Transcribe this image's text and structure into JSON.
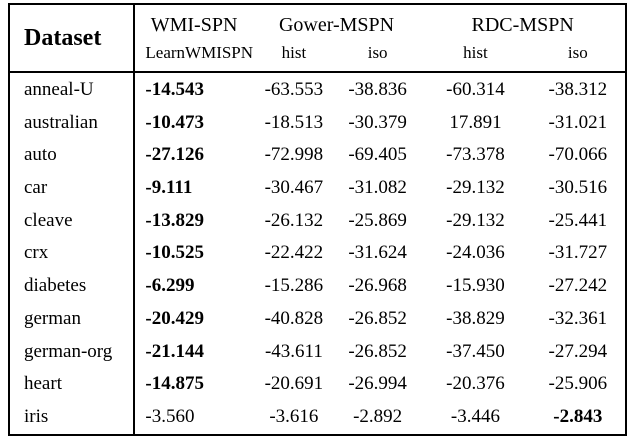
{
  "table": {
    "corner_label": "Dataset",
    "groups": [
      {
        "label": "WMI-SPN"
      },
      {
        "label": "Gower-MSPN"
      },
      {
        "label": "RDC-MSPN"
      }
    ],
    "subheaders": [
      "LearnWMISPN",
      "hist",
      "iso",
      "hist",
      "iso"
    ],
    "rows": [
      {
        "dataset": "anneal-U",
        "values": [
          "-14.543",
          "-63.553",
          "-38.836",
          "-60.314",
          "-38.312"
        ],
        "bold": 0
      },
      {
        "dataset": "australian",
        "values": [
          "-10.473",
          "-18.513",
          "-30.379",
          "17.891",
          "-31.021"
        ],
        "bold": 0
      },
      {
        "dataset": "auto",
        "values": [
          "-27.126",
          "-72.998",
          "-69.405",
          "-73.378",
          "-70.066"
        ],
        "bold": 0
      },
      {
        "dataset": "car",
        "values": [
          "-9.111",
          "-30.467",
          "-31.082",
          "-29.132",
          "-30.516"
        ],
        "bold": 0
      },
      {
        "dataset": "cleave",
        "values": [
          "-13.829",
          "-26.132",
          "-25.869",
          "-29.132",
          "-25.441"
        ],
        "bold": 0
      },
      {
        "dataset": "crx",
        "values": [
          "-10.525",
          "-22.422",
          "-31.624",
          "-24.036",
          "-31.727"
        ],
        "bold": 0
      },
      {
        "dataset": "diabetes",
        "values": [
          "-6.299",
          "-15.286",
          "-26.968",
          "-15.930",
          "-27.242"
        ],
        "bold": 0
      },
      {
        "dataset": "german",
        "values": [
          "-20.429",
          "-40.828",
          "-26.852",
          "-38.829",
          "-32.361"
        ],
        "bold": 0
      },
      {
        "dataset": "german-org",
        "values": [
          "-21.144",
          "-43.611",
          "-26.852",
          "-37.450",
          "-27.294"
        ],
        "bold": 0
      },
      {
        "dataset": "heart",
        "values": [
          "-14.875",
          "-20.691",
          "-26.994",
          "-20.376",
          "-25.906"
        ],
        "bold": 0
      },
      {
        "dataset": "iris",
        "values": [
          "-3.560",
          "-3.616",
          "-2.892",
          "-3.446",
          "-2.843"
        ],
        "bold": 4
      }
    ],
    "colors": {
      "border": "#000000",
      "text": "#000000",
      "background": "#ffffff"
    }
  }
}
